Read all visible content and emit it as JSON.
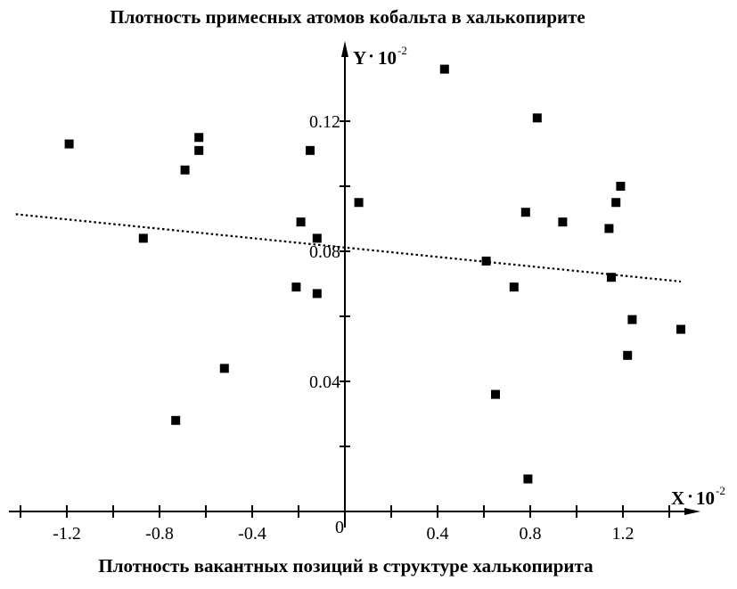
{
  "chart_data": {
    "type": "scatter",
    "title": "Плотность примесных атомов кобальта в халькопирите",
    "xlabel": "Плотность вакантных позиций в структуре халькопирита",
    "ylabel": "",
    "x_axis_name": "X",
    "y_axis_name": "Y",
    "axis_multiplier": "10",
    "axis_exponent": "-2",
    "origin_label": "0",
    "xlim": [
      -1.42,
      1.5
    ],
    "ylim": [
      0.0,
      0.14
    ],
    "x_ticks": [
      -1.4,
      -1.2,
      -1.0,
      -0.8,
      -0.6,
      -0.4,
      -0.2,
      0.2,
      0.4,
      0.6,
      0.8,
      1.0,
      1.2,
      1.4
    ],
    "x_tick_labels": [
      {
        "value": -1.2,
        "label": "-1.2"
      },
      {
        "value": -0.8,
        "label": "-0.8"
      },
      {
        "value": -0.4,
        "label": "-0.4"
      },
      {
        "value": 0.4,
        "label": "0.4"
      },
      {
        "value": 0.8,
        "label": "0.8"
      },
      {
        "value": 1.2,
        "label": "1.2"
      }
    ],
    "y_ticks": [
      0.02,
      0.04,
      0.06,
      0.08,
      0.1,
      0.12
    ],
    "y_tick_labels": [
      {
        "value": 0.04,
        "label": "0.04"
      },
      {
        "value": 0.08,
        "label": "0.08"
      },
      {
        "value": 0.12,
        "label": "0.12"
      }
    ],
    "grid": false,
    "series": [
      {
        "marker": "square",
        "color": "#000000",
        "points": [
          {
            "x": -1.19,
            "y": 0.113
          },
          {
            "x": -0.87,
            "y": 0.084
          },
          {
            "x": -0.73,
            "y": 0.028
          },
          {
            "x": -0.69,
            "y": 0.105
          },
          {
            "x": -0.63,
            "y": 0.115
          },
          {
            "x": -0.63,
            "y": 0.111
          },
          {
            "x": -0.52,
            "y": 0.044
          },
          {
            "x": -0.21,
            "y": 0.069
          },
          {
            "x": -0.19,
            "y": 0.089
          },
          {
            "x": -0.15,
            "y": 0.111
          },
          {
            "x": -0.12,
            "y": 0.084
          },
          {
            "x": -0.12,
            "y": 0.067
          },
          {
            "x": 0.06,
            "y": 0.095
          },
          {
            "x": 0.43,
            "y": 0.136
          },
          {
            "x": 0.61,
            "y": 0.077
          },
          {
            "x": 0.65,
            "y": 0.036
          },
          {
            "x": 0.73,
            "y": 0.069
          },
          {
            "x": 0.78,
            "y": 0.092
          },
          {
            "x": 0.79,
            "y": 0.01
          },
          {
            "x": 0.83,
            "y": 0.121
          },
          {
            "x": 0.94,
            "y": 0.089
          },
          {
            "x": 1.14,
            "y": 0.087
          },
          {
            "x": 1.15,
            "y": 0.072
          },
          {
            "x": 1.17,
            "y": 0.095
          },
          {
            "x": 1.19,
            "y": 0.1
          },
          {
            "x": 1.22,
            "y": 0.048
          },
          {
            "x": 1.24,
            "y": 0.059
          },
          {
            "x": 1.45,
            "y": 0.056
          }
        ]
      }
    ],
    "trendline": {
      "style": "dotted",
      "color": "#000000",
      "x": [
        -1.42,
        1.45
      ],
      "y": [
        0.0914,
        0.0707
      ]
    }
  }
}
